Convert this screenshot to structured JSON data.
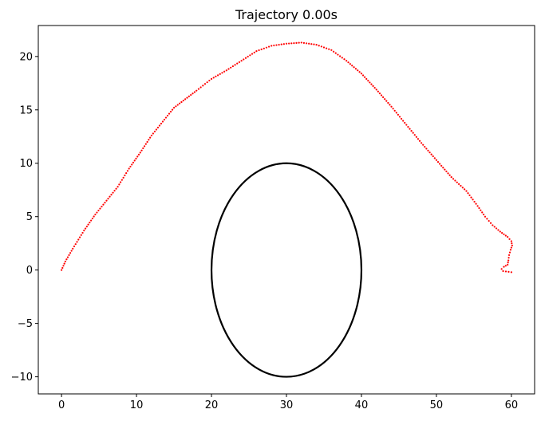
{
  "chart_data": {
    "type": "scatter",
    "title": "Trajectory 0.00s",
    "xlabel": "",
    "ylabel": "",
    "xlim": [
      -3.1,
      63.1
    ],
    "ylim": [
      -11.6,
      22.9
    ],
    "xticks": [
      0,
      10,
      20,
      30,
      40,
      50,
      60
    ],
    "yticks": [
      -10,
      -5,
      0,
      5,
      10,
      15,
      20
    ],
    "xtick_labels": [
      "0",
      "10",
      "20",
      "30",
      "40",
      "50",
      "60"
    ],
    "ytick_labels": [
      "−10",
      "−5",
      "0",
      "5",
      "10",
      "15",
      "20"
    ],
    "grid": false,
    "legend": false,
    "series": [
      {
        "kind": "trajectory-points",
        "color": "#ff0000",
        "points": [
          [
            0.0,
            0.0
          ],
          [
            0.5,
            0.8
          ],
          [
            1.5,
            2.0
          ],
          [
            3.0,
            3.7
          ],
          [
            4.5,
            5.2
          ],
          [
            6.0,
            6.5
          ],
          [
            7.5,
            7.8
          ],
          [
            9.0,
            9.5
          ],
          [
            10.5,
            11.0
          ],
          [
            12.0,
            12.6
          ],
          [
            13.5,
            13.9
          ],
          [
            15.0,
            15.2
          ],
          [
            16.5,
            16.0
          ],
          [
            18.0,
            16.8
          ],
          [
            20.0,
            17.9
          ],
          [
            22.0,
            18.7
          ],
          [
            24.0,
            19.6
          ],
          [
            26.0,
            20.5
          ],
          [
            28.0,
            21.0
          ],
          [
            30.0,
            21.2
          ],
          [
            32.0,
            21.3
          ],
          [
            34.0,
            21.1
          ],
          [
            36.0,
            20.6
          ],
          [
            38.0,
            19.6
          ],
          [
            40.0,
            18.4
          ],
          [
            42.0,
            16.9
          ],
          [
            44.0,
            15.3
          ],
          [
            46.0,
            13.6
          ],
          [
            48.0,
            11.9
          ],
          [
            50.0,
            10.3
          ],
          [
            52.0,
            8.7
          ],
          [
            54.0,
            7.4
          ],
          [
            55.5,
            6.0
          ],
          [
            56.5,
            5.0
          ],
          [
            57.5,
            4.2
          ],
          [
            58.5,
            3.6
          ],
          [
            59.5,
            3.1
          ],
          [
            60.0,
            2.7
          ],
          [
            60.1,
            2.3
          ],
          [
            59.9,
            1.9
          ],
          [
            59.7,
            1.4
          ],
          [
            59.6,
            0.9
          ],
          [
            59.5,
            0.5
          ],
          [
            59.0,
            0.3
          ],
          [
            58.7,
            0.1
          ],
          [
            58.9,
            -0.1
          ],
          [
            60.0,
            -0.2
          ]
        ]
      },
      {
        "kind": "ellipse-outline",
        "color": "#000000",
        "center": [
          30,
          0
        ],
        "radius_x": 10,
        "radius_y": 10
      }
    ]
  }
}
